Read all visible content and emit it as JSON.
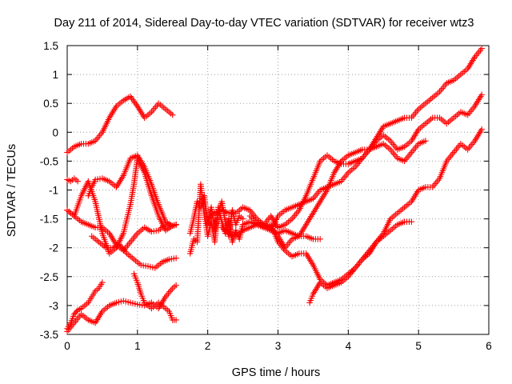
{
  "chart_data": {
    "type": "scatter",
    "title": "Day 211 of 2014, Sidereal Day-to-day VTEC variation (SDTVAR) for receiver wtz3",
    "xlabel": "GPS time / hours",
    "ylabel": "SDTVAR / TECUs",
    "xlim": [
      0,
      6
    ],
    "ylim": [
      -3.5,
      1.5
    ],
    "x_ticks": [
      "0",
      "1",
      "2",
      "3",
      "4",
      "5",
      "6"
    ],
    "y_ticks": [
      "-3.5",
      "-3",
      "-2.5",
      "-2",
      "-1.5",
      "-1",
      "-0.5",
      "0",
      "0.5",
      "1",
      "1.5"
    ],
    "grid": true,
    "marker": "plus",
    "color": "#ff0000",
    "series": [
      {
        "x": [
          0.0,
          0.1,
          0.2,
          0.3,
          0.4,
          0.5,
          0.6,
          0.7,
          0.8,
          0.9,
          1.0,
          1.1,
          1.2,
          1.3,
          1.4,
          1.5
        ],
        "y": [
          -0.35,
          -0.25,
          -0.2,
          -0.2,
          -0.15,
          0.0,
          0.25,
          0.45,
          0.55,
          0.62,
          0.45,
          0.25,
          0.35,
          0.5,
          0.4,
          0.3
        ]
      },
      {
        "x": [
          0.0,
          0.05,
          0.1,
          0.15
        ],
        "y": [
          -0.82,
          -0.85,
          -0.8,
          -0.85
        ]
      },
      {
        "x": [
          0.3,
          0.35,
          0.4,
          0.5,
          0.6,
          0.7,
          0.8,
          0.9,
          1.0,
          1.1,
          1.2,
          1.3,
          1.4,
          1.5,
          1.55
        ],
        "y": [
          -1.1,
          -0.95,
          -0.82,
          -0.8,
          -0.85,
          -0.95,
          -0.75,
          -0.45,
          -0.4,
          -0.6,
          -0.9,
          -1.25,
          -1.55,
          -1.62,
          -1.6
        ]
      },
      {
        "x": [
          0.0,
          0.1,
          0.2,
          0.3,
          0.4,
          0.5,
          0.6,
          0.7,
          0.8,
          0.9,
          1.0,
          1.1,
          1.2,
          1.3,
          1.4,
          1.5,
          1.55
        ],
        "y": [
          -1.35,
          -1.45,
          -1.55,
          -1.6,
          -1.65,
          -1.65,
          -1.75,
          -1.95,
          -2.05,
          -1.9,
          -1.75,
          -1.65,
          -1.72,
          -1.7,
          -1.6,
          -1.62,
          -1.6
        ]
      },
      {
        "x": [
          0.0,
          0.1,
          0.2,
          0.3,
          0.4,
          0.5,
          0.6,
          0.7,
          0.8,
          0.9,
          0.95,
          1.0,
          1.1,
          1.2,
          1.3,
          1.4,
          1.5,
          1.55
        ],
        "y": [
          -1.35,
          -1.45,
          -1.1,
          -0.85,
          -1.2,
          -1.75,
          -2.1,
          -2.0,
          -1.75,
          -1.25,
          -0.9,
          -0.45,
          -0.7,
          -1.1,
          -1.45,
          -1.7,
          -1.62,
          -1.6
        ]
      },
      {
        "x": [
          0.35,
          0.45,
          0.55,
          0.65,
          0.75,
          0.85,
          0.95,
          1.05,
          1.15,
          1.25,
          1.35,
          1.45,
          1.55
        ],
        "y": [
          -1.8,
          -1.9,
          -2.0,
          -2.0,
          -1.95,
          -2.1,
          -2.2,
          -2.3,
          -2.32,
          -2.35,
          -2.25,
          -2.2,
          -2.18
        ]
      },
      {
        "x": [
          0.0,
          0.05,
          0.1,
          0.15,
          0.2,
          0.25,
          0.3,
          0.35,
          0.4,
          0.45,
          0.5
        ],
        "y": [
          -3.4,
          -3.3,
          -3.15,
          -3.08,
          -3.05,
          -3.0,
          -2.95,
          -2.85,
          -2.75,
          -2.7,
          -2.6
        ]
      },
      {
        "x": [
          0.0,
          0.1,
          0.2,
          0.3,
          0.4,
          0.5,
          0.6,
          0.7,
          0.8,
          0.9,
          1.0,
          1.1,
          1.2,
          1.3,
          1.4,
          1.5,
          1.55
        ],
        "y": [
          -3.45,
          -3.3,
          -3.15,
          -3.25,
          -3.3,
          -3.1,
          -3.0,
          -2.95,
          -2.92,
          -2.95,
          -2.98,
          -3.0,
          -2.95,
          -3.05,
          -2.85,
          -2.7,
          -2.65
        ]
      },
      {
        "x": [
          0.95,
          1.0,
          1.05,
          1.1,
          1.15,
          1.2,
          1.25,
          1.3,
          1.35,
          1.4,
          1.45,
          1.5,
          1.55
        ],
        "y": [
          -2.45,
          -2.6,
          -2.8,
          -2.95,
          -3.0,
          -3.05,
          -3.0,
          -2.95,
          -3.0,
          -3.05,
          -3.1,
          -3.25,
          -3.25
        ]
      },
      {
        "x": [
          1.75,
          1.8,
          1.85,
          1.9,
          1.95,
          2.0,
          2.05,
          2.1,
          2.15,
          2.2,
          2.25,
          2.3,
          2.35,
          2.4,
          2.45,
          2.5
        ],
        "y": [
          -1.75,
          -1.5,
          -1.2,
          -1.3,
          -1.1,
          -1.6,
          -1.3,
          -1.7,
          -1.4,
          -1.2,
          -1.55,
          -1.8,
          -1.35,
          -1.6,
          -1.45,
          -1.5
        ]
      },
      {
        "x": [
          1.75,
          1.8,
          1.85,
          1.9,
          1.95,
          2.0,
          2.05,
          2.1,
          2.15,
          2.2,
          2.25,
          2.3,
          2.35,
          2.4,
          2.45,
          2.5
        ],
        "y": [
          -2.1,
          -1.85,
          -1.9,
          -0.9,
          -1.4,
          -1.8,
          -1.55,
          -1.9,
          -1.3,
          -1.55,
          -1.75,
          -1.5,
          -1.9,
          -1.7,
          -1.85,
          -1.6
        ]
      },
      {
        "x": [
          2.0,
          2.1,
          2.2,
          2.3,
          2.4,
          2.5,
          2.6,
          2.7,
          2.8,
          2.9,
          3.0,
          3.1,
          3.2,
          3.3,
          3.4,
          3.5,
          3.6,
          3.7,
          3.8,
          3.9,
          4.0,
          4.1,
          4.2,
          4.3,
          4.4,
          4.5,
          4.6,
          4.7,
          4.8,
          4.9,
          5.0,
          5.1,
          5.2,
          5.3,
          5.4,
          5.5,
          5.6,
          5.7,
          5.8,
          5.9
        ],
        "y": [
          -1.5,
          -1.4,
          -1.35,
          -1.4,
          -1.4,
          -1.3,
          -1.35,
          -1.5,
          -1.6,
          -1.45,
          -1.65,
          -1.6,
          -1.5,
          -1.35,
          -1.1,
          -0.8,
          -0.5,
          -0.4,
          -0.5,
          -0.55,
          -0.55,
          -0.5,
          -0.45,
          -0.3,
          -0.1,
          0.1,
          0.15,
          0.2,
          0.25,
          0.25,
          0.4,
          0.5,
          0.6,
          0.7,
          0.85,
          0.9,
          1.0,
          1.1,
          1.3,
          1.45
        ]
      },
      {
        "x": [
          2.5,
          2.6,
          2.7,
          2.8,
          2.9,
          3.0,
          3.1,
          3.2,
          3.3,
          3.4,
          3.5,
          3.6,
          3.7,
          3.8,
          3.9,
          4.0,
          4.1,
          4.2,
          4.3,
          4.4,
          4.5,
          4.6,
          4.7,
          4.8,
          4.9,
          5.0,
          5.1,
          5.2,
          5.3,
          5.4,
          5.5,
          5.6,
          5.7,
          5.8,
          5.9
        ],
        "y": [
          -1.6,
          -1.55,
          -1.6,
          -1.65,
          -1.7,
          -1.45,
          -1.35,
          -1.3,
          -1.25,
          -1.2,
          -1.15,
          -1.0,
          -0.95,
          -0.9,
          -0.85,
          -0.7,
          -0.6,
          -0.45,
          -0.3,
          -0.15,
          -0.05,
          -0.15,
          -0.3,
          -0.25,
          -0.15,
          0.05,
          0.15,
          0.25,
          0.25,
          0.15,
          0.25,
          0.35,
          0.3,
          0.45,
          0.65
        ]
      },
      {
        "x": [
          2.6,
          2.7,
          2.8,
          2.9,
          3.0,
          3.1,
          3.2,
          3.3,
          3.4,
          3.5,
          3.6,
          3.7,
          3.8,
          3.9,
          4.0,
          4.1,
          4.2,
          4.3,
          4.4,
          4.5,
          4.6,
          4.7,
          4.8,
          4.9,
          5.0,
          5.1
        ],
        "y": [
          -1.45,
          -1.55,
          -1.6,
          -1.65,
          -1.8,
          -2.0,
          -1.85,
          -1.8,
          -1.6,
          -1.4,
          -1.2,
          -1.0,
          -0.7,
          -0.5,
          -0.4,
          -0.35,
          -0.3,
          -0.3,
          -0.25,
          -0.2,
          -0.3,
          -0.45,
          -0.5,
          -0.35,
          -0.2,
          -0.15
        ]
      },
      {
        "x": [
          2.2,
          2.3,
          2.4,
          2.5,
          2.6,
          2.7,
          2.8,
          2.9,
          3.0,
          3.1,
          3.2,
          3.3,
          3.4,
          3.5,
          3.6,
          3.7,
          3.8,
          3.9,
          4.0,
          4.1,
          4.2,
          4.3,
          4.4,
          4.5,
          4.6,
          4.7,
          4.8,
          4.9,
          5.0,
          5.1,
          5.2,
          5.3,
          5.4,
          5.5,
          5.6,
          5.7,
          5.8,
          5.9
        ],
        "y": [
          -1.65,
          -1.75,
          -1.8,
          -1.7,
          -1.65,
          -1.6,
          -1.65,
          -1.6,
          -1.9,
          -2.05,
          -2.15,
          -2.1,
          -2.1,
          -2.3,
          -2.55,
          -2.65,
          -2.6,
          -2.55,
          -2.45,
          -2.35,
          -2.2,
          -2.05,
          -1.9,
          -1.75,
          -1.5,
          -1.4,
          -1.3,
          -1.2,
          -1.0,
          -0.95,
          -0.95,
          -0.8,
          -0.5,
          -0.35,
          -0.2,
          -0.3,
          -0.15,
          0.05
        ]
      },
      {
        "x": [
          2.9,
          3.0,
          3.1,
          3.2,
          3.3,
          3.4,
          3.5,
          3.6
        ],
        "y": [
          -1.7,
          -1.75,
          -1.7,
          -1.75,
          -1.8,
          -1.8,
          -1.85,
          -1.85
        ]
      },
      {
        "x": [
          3.45,
          3.5,
          3.6,
          3.7,
          3.8,
          3.9,
          4.0,
          4.1,
          4.2,
          4.3,
          4.4,
          4.5,
          4.6,
          4.7,
          4.8,
          4.9
        ],
        "y": [
          -2.95,
          -2.8,
          -2.6,
          -2.7,
          -2.65,
          -2.6,
          -2.5,
          -2.35,
          -2.2,
          -2.1,
          -1.9,
          -1.8,
          -1.7,
          -1.6,
          -1.55,
          -1.55
        ]
      }
    ]
  }
}
